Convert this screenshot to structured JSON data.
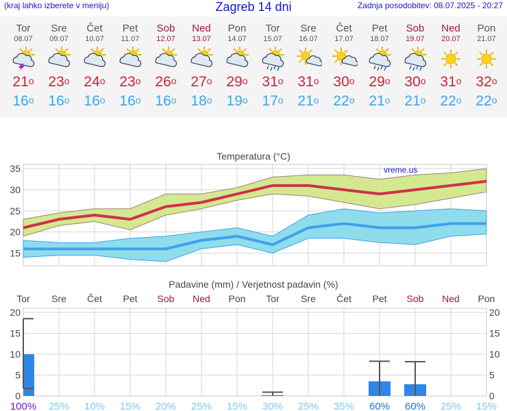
{
  "header": {
    "left_note": "(kraj lahko izberete v meniju)",
    "title": "Zagreb 14 dni",
    "updated": "Zadnja posodobitev: 08.07.2025 - 20:27"
  },
  "days": [
    {
      "name": "Tor",
      "date": "08.07",
      "weekend": false,
      "icon": "sun-cloud-lightning-icon",
      "tmax": "21",
      "tmin": "16"
    },
    {
      "name": "Sre",
      "date": "09.07",
      "weekend": false,
      "icon": "sun-cloud-icon",
      "tmax": "23",
      "tmin": "16"
    },
    {
      "name": "Čet",
      "date": "10.07",
      "weekend": false,
      "icon": "sun-cloud-icon",
      "tmax": "24",
      "tmin": "16"
    },
    {
      "name": "Pet",
      "date": "11.07",
      "weekend": false,
      "icon": "sun-cloud-icon",
      "tmax": "23",
      "tmin": "16"
    },
    {
      "name": "Sob",
      "date": "12.07",
      "weekend": true,
      "icon": "sun-cloud-icon",
      "tmax": "26",
      "tmin": "16"
    },
    {
      "name": "Ned",
      "date": "13.07",
      "weekend": true,
      "icon": "sun-cloud-icon",
      "tmax": "27",
      "tmin": "18"
    },
    {
      "name": "Pon",
      "date": "14.07",
      "weekend": false,
      "icon": "sun-cloud-icon",
      "tmax": "29",
      "tmin": "19"
    },
    {
      "name": "Tor",
      "date": "15.07",
      "weekend": false,
      "icon": "sun-cloud-rain-icon",
      "tmax": "31",
      "tmin": "17"
    },
    {
      "name": "Sre",
      "date": "16.07",
      "weekend": false,
      "icon": "sun-small-cloud-icon",
      "tmax": "31",
      "tmin": "21"
    },
    {
      "name": "Čet",
      "date": "17.07",
      "weekend": false,
      "icon": "sun-small-cloud-icon",
      "tmax": "30",
      "tmin": "22"
    },
    {
      "name": "Pet",
      "date": "18.07",
      "weekend": false,
      "icon": "sun-cloud-rain-icon",
      "tmax": "29",
      "tmin": "21"
    },
    {
      "name": "Sob",
      "date": "19.07",
      "weekend": true,
      "icon": "sun-cloud-rain-icon",
      "tmax": "30",
      "tmin": "21"
    },
    {
      "name": "Ned",
      "date": "20.07",
      "weekend": true,
      "icon": "sun-icon",
      "tmax": "31",
      "tmin": "22"
    },
    {
      "name": "Pon",
      "date": "21.07",
      "weekend": false,
      "icon": "sun-icon",
      "tmax": "32",
      "tmin": "22"
    }
  ],
  "degree_symbol": "o",
  "colors": {
    "header_blue": "#1515c8",
    "weekend": "#a0144a",
    "tmax": "#d0203a",
    "tmin": "#3aa7e8",
    "max_line": "#d0304a",
    "max_band": "#d4e890",
    "min_line": "#3ea2ec",
    "min_band": "#8fdcec",
    "bar": "#2e86e8",
    "prob_low": "#7cc8f0",
    "prob_mid": "#2070e0",
    "prob_high": "#8010c0"
  },
  "chart_data": [
    {
      "type": "line",
      "title": "Temperatura (°C)",
      "ylim": [
        12,
        36
      ],
      "yticks": [
        "15",
        "20",
        "25",
        "30",
        "35"
      ],
      "grid": true,
      "watermark": "vreme.us",
      "x": [
        "08.07",
        "09.07",
        "10.07",
        "11.07",
        "12.07",
        "13.07",
        "14.07",
        "15.07",
        "16.07",
        "17.07",
        "18.07",
        "19.07",
        "20.07",
        "21.07"
      ],
      "series": [
        {
          "role": "max",
          "values": [
            21,
            23,
            24,
            23,
            26,
            27,
            29,
            31,
            31,
            30,
            29,
            30,
            31,
            32
          ]
        },
        {
          "role": "max_upper",
          "values": [
            23,
            24.5,
            25.5,
            25.5,
            29,
            29,
            30.5,
            33,
            33.5,
            33.5,
            32.5,
            33.5,
            34,
            35
          ]
        },
        {
          "role": "max_lower",
          "values": [
            19,
            21.5,
            22.5,
            20.5,
            24,
            25.5,
            27.5,
            29,
            28.5,
            27,
            25.5,
            26.5,
            28,
            29.5
          ]
        },
        {
          "role": "min",
          "values": [
            16,
            16,
            16,
            16,
            16,
            18,
            19,
            17,
            21,
            22,
            21,
            21,
            22,
            22
          ]
        },
        {
          "role": "min_upper",
          "values": [
            18,
            17.5,
            17.5,
            18.5,
            19,
            20,
            21,
            19,
            24,
            25.5,
            24.5,
            25,
            25.5,
            25
          ]
        },
        {
          "role": "min_lower",
          "values": [
            14,
            14.5,
            14.5,
            13.5,
            13,
            16,
            17,
            15,
            18.5,
            18.5,
            17.5,
            17,
            19,
            19.5
          ]
        }
      ]
    },
    {
      "type": "bar",
      "title": "Padavine (mm) / Verjetnost padavin (%)",
      "ylim": [
        0,
        21
      ],
      "yticks": [
        "0",
        "5",
        "10",
        "15",
        "20"
      ],
      "categories": [
        "Tor",
        "Sre",
        "Čet",
        "Pet",
        "Sob",
        "Ned",
        "Pon",
        "Tor",
        "Sre",
        "Čet",
        "Pet",
        "Sob",
        "Ned",
        "Pon"
      ],
      "values": [
        10,
        0,
        0,
        0,
        0,
        0,
        0,
        0.2,
        0,
        0,
        3.5,
        2.8,
        0,
        0
      ],
      "error_high": [
        18.5,
        0,
        0,
        0,
        0,
        0,
        0,
        0.9,
        0,
        0,
        8.3,
        8.2,
        0,
        0
      ],
      "error_low": [
        1.8,
        0,
        0,
        0,
        0,
        0,
        0,
        0,
        0,
        0,
        0,
        0,
        0,
        0
      ],
      "probability": [
        "100%",
        "25%",
        "10%",
        "15%",
        "20%",
        "25%",
        "15%",
        "30%",
        "25%",
        "35%",
        "60%",
        "60%",
        "25%",
        "15%"
      ]
    }
  ]
}
